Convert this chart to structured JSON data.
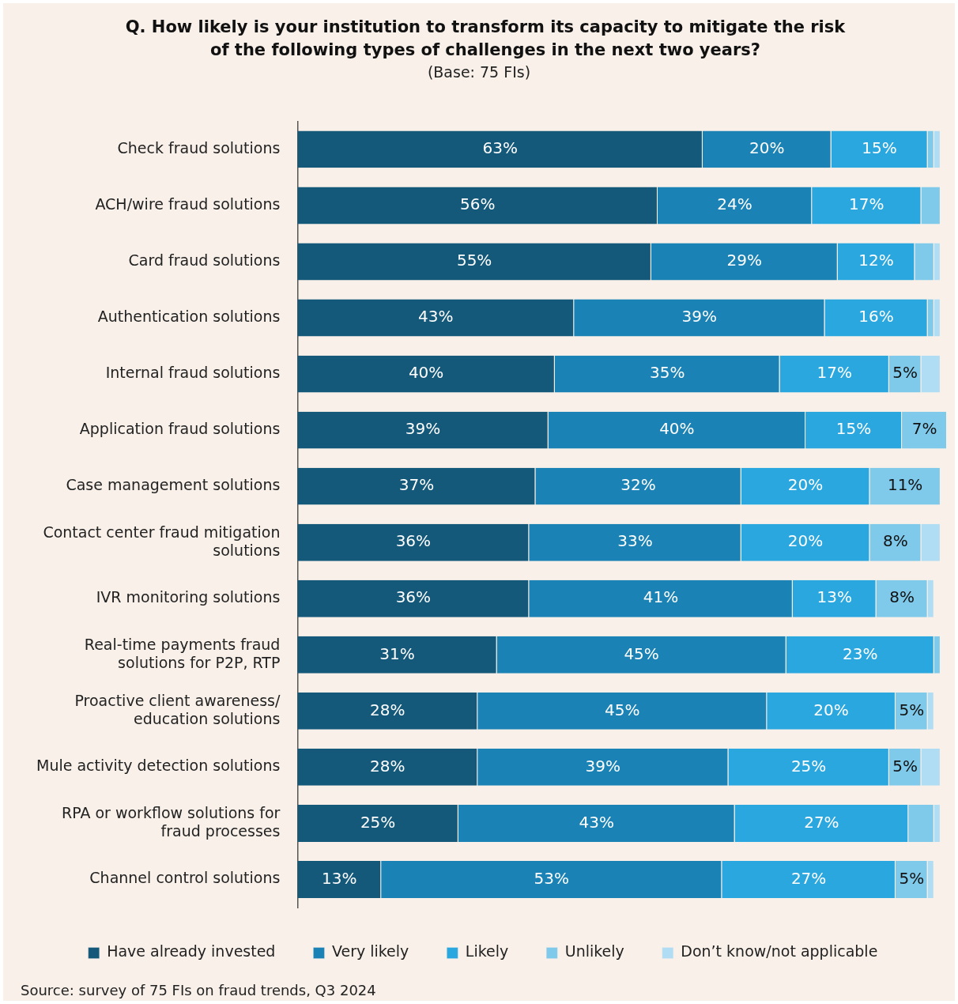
{
  "chart_data": {
    "type": "bar",
    "orientation": "horizontal",
    "stacked": true,
    "title": "Q. How likely is your institution to transform its capacity to mitigate the risk of the following types of challenges in the next two years?",
    "subtitle": "(Base: 75 FIs)",
    "annotations": [
      "Source: survey of 75 FIs on fraud trends, Q3 2024"
    ],
    "categories": [
      "Check fraud solutions",
      "ACH/wire fraud solutions",
      "Card fraud solutions",
      "Authentication solutions",
      "Internal fraud solutions",
      "Application fraud solutions",
      "Case management solutions",
      "Contact center fraud mitigation solutions",
      "IVR monitoring solutions",
      "Real-time payments fraud solutions for P2P, RTP",
      "Proactive client awareness/ education solutions",
      "Mule activity detection solutions",
      "RPA or workflow solutions for fraud processes",
      "Channel control solutions"
    ],
    "xlim": [
      0,
      101
    ],
    "grid": false,
    "legend": "bottom",
    "series": [
      {
        "name": "Have already invested",
        "color": "#14587a",
        "values": [
          63,
          56,
          55,
          43,
          40,
          39,
          37,
          36,
          36,
          31,
          28,
          28,
          25,
          13
        ],
        "value_labels": [
          "63%",
          "56%",
          "55%",
          "43%",
          "40%",
          "39%",
          "37%",
          "36%",
          "36%",
          "31%",
          "28%",
          "28%",
          "25%",
          "13%"
        ]
      },
      {
        "name": "Very likely",
        "color": "#1a82b4",
        "values": [
          20,
          24,
          29,
          39,
          35,
          40,
          32,
          33,
          41,
          45,
          45,
          39,
          43,
          53
        ],
        "value_labels": [
          "20%",
          "24%",
          "29%",
          "39%",
          "35%",
          "40%",
          "32%",
          "33%",
          "41%",
          "45%",
          "45%",
          "39%",
          "43%",
          "53%"
        ]
      },
      {
        "name": "Likely",
        "color": "#2aa7df",
        "values": [
          15,
          17,
          12,
          16,
          17,
          15,
          20,
          20,
          13,
          23,
          20,
          25,
          27,
          27
        ],
        "value_labels": [
          "15%",
          "17%",
          "12%",
          "16%",
          "17%",
          "15%",
          "20%",
          "20%",
          "13%",
          "23%",
          "20%",
          "25%",
          "27%",
          "27%"
        ]
      },
      {
        "name": "Unlikely",
        "color": "#7fc9ea",
        "values": [
          1,
          3,
          3,
          1,
          5,
          7,
          11,
          8,
          8,
          1,
          5,
          5,
          4,
          5
        ],
        "value_labels": [
          null,
          null,
          null,
          null,
          "5%",
          "7%",
          "11%",
          "8%",
          "8%",
          null,
          "5%",
          "5%",
          null,
          "5%"
        ]
      },
      {
        "name": "Don’t know/not applicable",
        "color": "#b0ddf3",
        "values": [
          1,
          null,
          1,
          1,
          3,
          null,
          null,
          3,
          1,
          null,
          1,
          3,
          1,
          1
        ],
        "value_labels": [
          null,
          null,
          null,
          null,
          null,
          null,
          null,
          null,
          null,
          null,
          null,
          null,
          null,
          null
        ]
      }
    ]
  }
}
